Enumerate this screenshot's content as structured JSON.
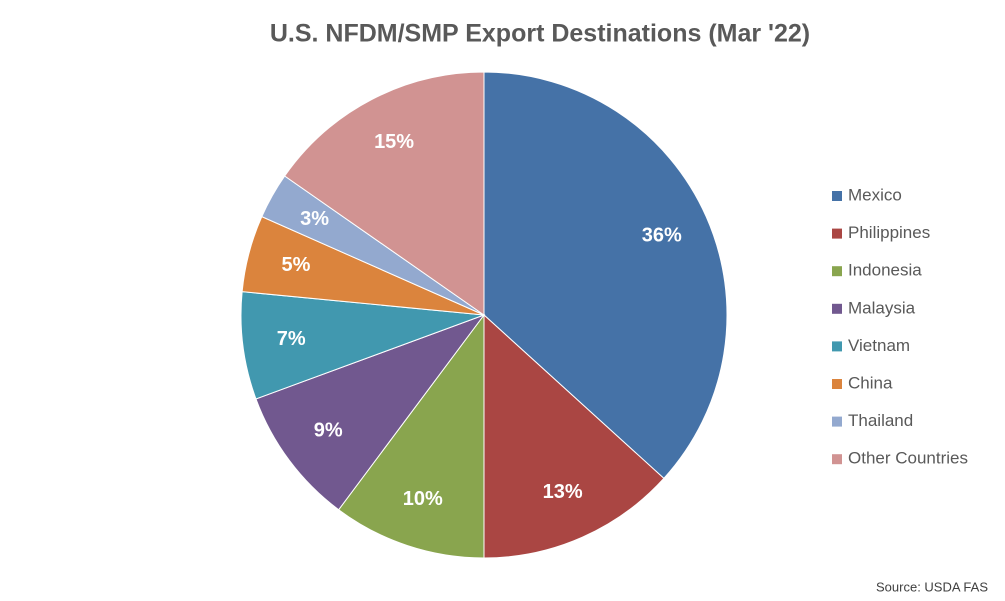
{
  "chart_data": {
    "type": "pie",
    "title": "U.S. NFDM/SMP Export Destinations (Mar '22)",
    "categories": [
      "Mexico",
      "Philippines",
      "Indonesia",
      "Malaysia",
      "Vietnam",
      "China",
      "Thailand",
      "Other Countries"
    ],
    "values": [
      36,
      13,
      10,
      9,
      7,
      5,
      3,
      15
    ],
    "value_labels": [
      "36%",
      "13%",
      "10%",
      "9%",
      "7%",
      "5%",
      "3%",
      "15%"
    ],
    "colors": [
      "#4572a7",
      "#aa4643",
      "#89a54e",
      "#71588f",
      "#4198af",
      "#db843d",
      "#93a9cf",
      "#d19392"
    ],
    "legend": "right",
    "source": "Source: USDA FAS"
  }
}
